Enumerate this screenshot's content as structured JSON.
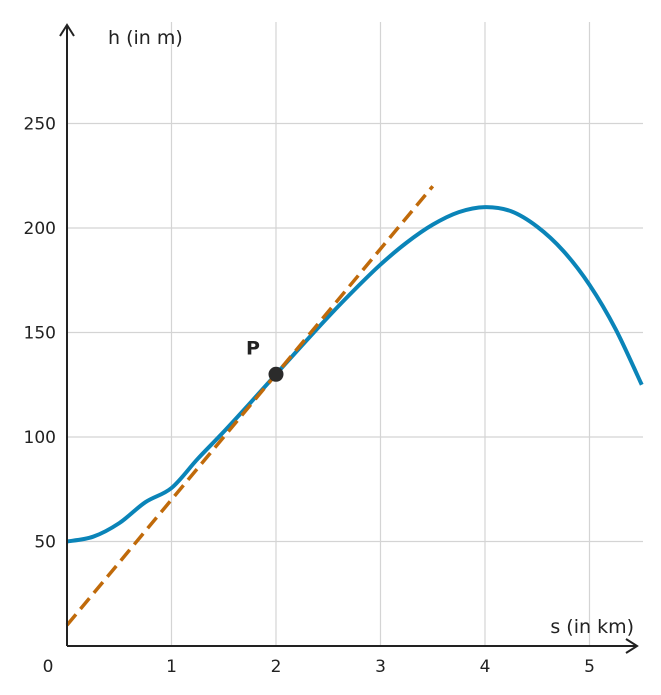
{
  "chart_data": {
    "type": "line",
    "xlabel": "s (in km)",
    "ylabel": "h (in m)",
    "xlim": [
      0,
      5.5
    ],
    "ylim": [
      0,
      290
    ],
    "x_ticks": [
      1,
      2,
      3,
      4,
      5
    ],
    "y_ticks": [
      50,
      100,
      150,
      200,
      250
    ],
    "origin_label": "0",
    "grid": true,
    "series": [
      {
        "color": "#0a84b8",
        "style": "solid",
        "x": [
          0,
          0.25,
          0.5,
          0.75,
          1,
          1.25,
          1.5,
          1.75,
          2,
          2.25,
          2.5,
          2.75,
          3,
          3.25,
          3.5,
          3.75,
          4,
          4.25,
          4.5,
          4.75,
          5,
          5.25,
          5.5
        ],
        "y": [
          50,
          52.3,
          58.8,
          68.8,
          75.6,
          89.5,
          102.5,
          116.1,
          130,
          143.9,
          157.5,
          170.4,
          182.5,
          193.0,
          201.6,
          207.6,
          210,
          208.0,
          200.6,
          189.0,
          172.8,
          151.6,
          125
        ]
      },
      {
        "color": "#c06a0a",
        "style": "dashed",
        "x": [
          0,
          3.5
        ],
        "y": [
          10,
          220
        ]
      }
    ],
    "points": [
      {
        "label": "P",
        "x": 2,
        "y": 130,
        "color": "#2b2b2b"
      }
    ]
  }
}
